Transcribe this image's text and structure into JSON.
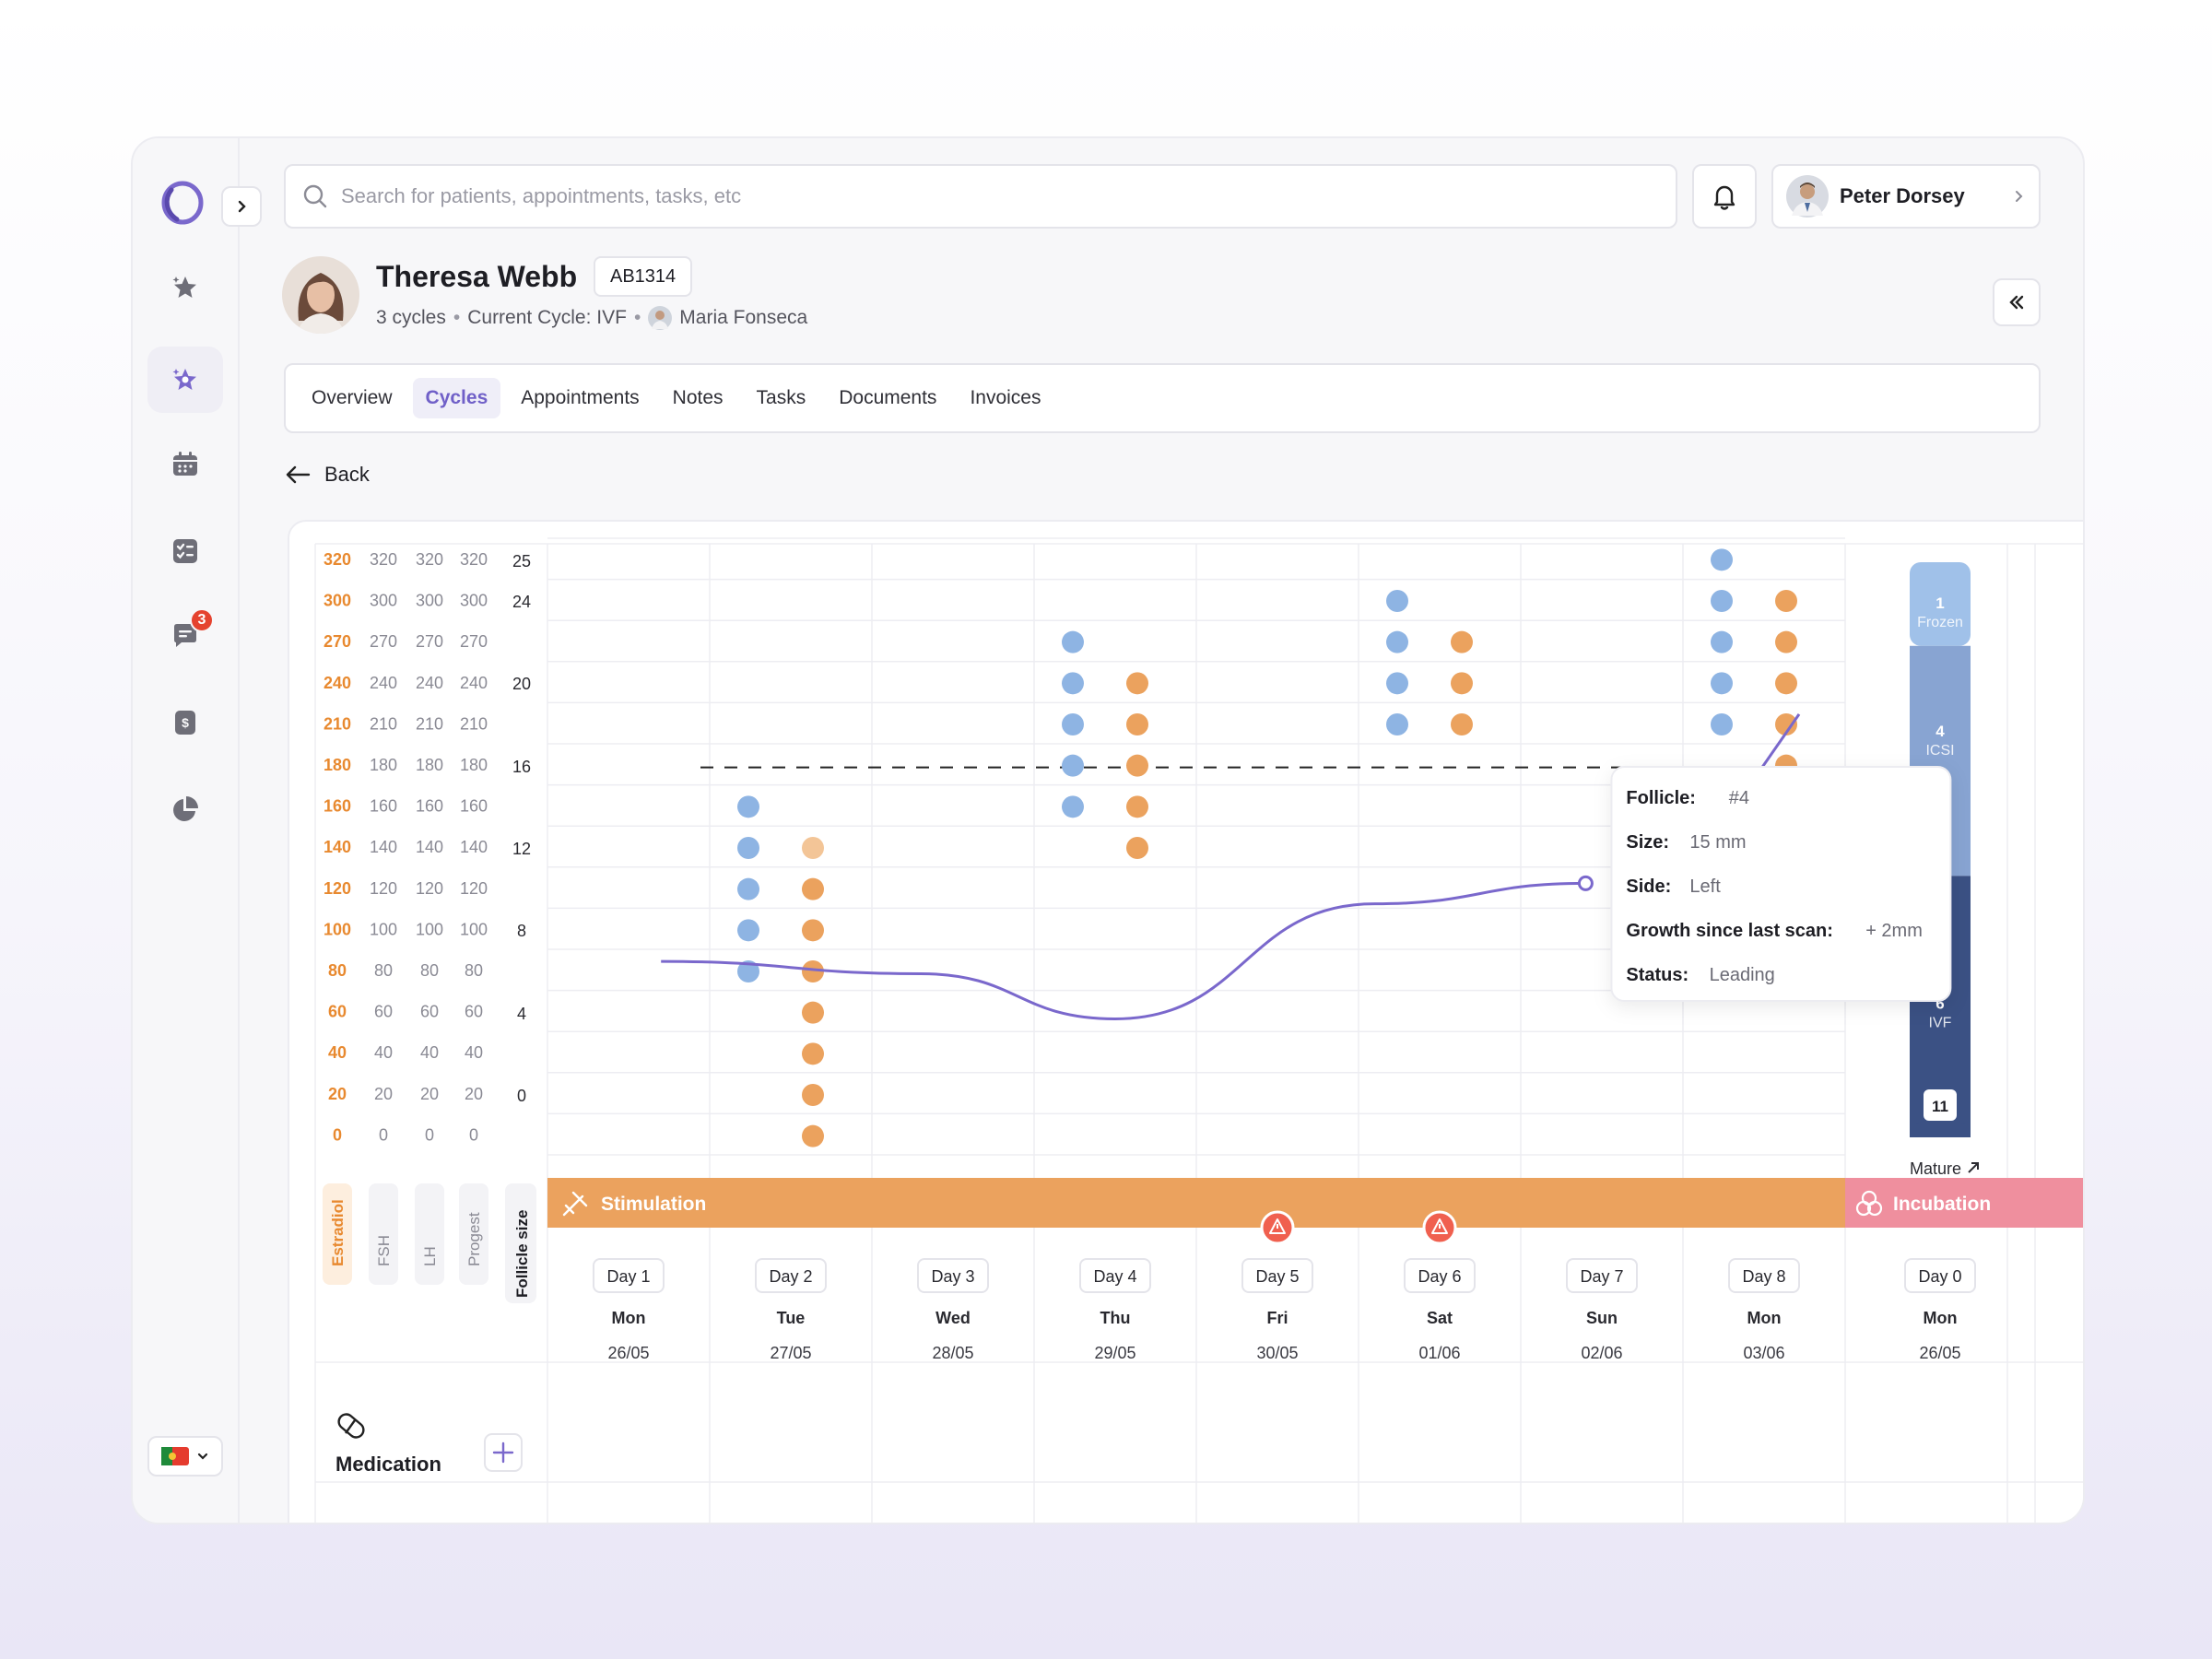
{
  "search": {
    "placeholder": "Search for patients, appointments, tasks, etc"
  },
  "user": {
    "name": "Peter Dorsey"
  },
  "sidebar": {
    "messages_badge": "3"
  },
  "patient": {
    "name": "Theresa Webb",
    "id": "AB1314",
    "cycles": "3 cycles",
    "current_cycle": "Current Cycle: IVF",
    "doctor": "Maria Fonseca"
  },
  "tabs": [
    "Overview",
    "Cycles",
    "Appointments",
    "Notes",
    "Tasks",
    "Documents",
    "Invoices"
  ],
  "active_tab": "Cycles",
  "back_label": "Back",
  "phases": {
    "stimulation": "Stimulation",
    "incubation": "Incubation"
  },
  "medication_label": "Medication",
  "colors": {
    "accent": "#7a68cc",
    "estradiol": "#e8892f",
    "blue_follicle": "#8eb4e3",
    "orange_follicle": "#eba25e",
    "stimulation": "#eba25e",
    "incubation": "#ef8f9e",
    "frozen": "#a0c1e9",
    "icsi": "#88a4d2",
    "ivf": "#3b5184",
    "alert": "#f0604f"
  },
  "chart_data": {
    "type": "scatter",
    "y_axes": [
      {
        "label": "Estradiol",
        "ticks": [
          320,
          300,
          270,
          240,
          210,
          180,
          160,
          140,
          120,
          100,
          80,
          60,
          40,
          20,
          0
        ]
      },
      {
        "label": "FSH",
        "ticks": [
          320,
          300,
          270,
          240,
          210,
          180,
          160,
          140,
          120,
          100,
          80,
          60,
          40,
          20,
          0
        ]
      },
      {
        "label": "LH",
        "ticks": [
          320,
          300,
          270,
          240,
          210,
          180,
          160,
          140,
          120,
          100,
          80,
          60,
          40,
          20,
          0
        ]
      },
      {
        "label": "Progest",
        "ticks": [
          320,
          300,
          270,
          240,
          210,
          180,
          160,
          140,
          120,
          100,
          80,
          60,
          40,
          20,
          0
        ]
      },
      {
        "label": "Follicle size",
        "ticks": [
          25,
          24,
          20,
          16,
          12,
          8,
          4,
          0
        ]
      }
    ],
    "days": [
      {
        "day": "Day 1",
        "weekday": "Mon",
        "date": "26/05"
      },
      {
        "day": "Day 2",
        "weekday": "Tue",
        "date": "27/05"
      },
      {
        "day": "Day 3",
        "weekday": "Wed",
        "date": "28/05"
      },
      {
        "day": "Day 4",
        "weekday": "Thu",
        "date": "29/05"
      },
      {
        "day": "Day 5",
        "weekday": "Fri",
        "date": "30/05",
        "alert": true
      },
      {
        "day": "Day 6",
        "weekday": "Sat",
        "date": "01/06",
        "alert": true
      },
      {
        "day": "Day 7",
        "weekday": "Sun",
        "date": "02/06"
      },
      {
        "day": "Day 8",
        "weekday": "Mon",
        "date": "03/06"
      },
      {
        "day": "Day 0",
        "weekday": "Mon",
        "date": "26/05"
      }
    ],
    "threshold_mm": 16,
    "follicles": [
      {
        "day": "Day 2",
        "side": "blue",
        "sizes": [
          14,
          12,
          10,
          8,
          6
        ]
      },
      {
        "day": "Day 2",
        "side": "orange",
        "sizes": [
          12,
          10,
          8,
          6,
          4,
          2,
          0,
          -2
        ]
      },
      {
        "day": "Day 4",
        "side": "blue",
        "sizes": [
          22,
          20,
          18,
          16,
          14
        ]
      },
      {
        "day": "Day 4",
        "side": "orange",
        "sizes": [
          20,
          18,
          16,
          14,
          12
        ]
      },
      {
        "day": "Day 6",
        "side": "blue",
        "sizes": [
          24,
          22,
          20,
          18
        ]
      },
      {
        "day": "Day 6",
        "side": "orange",
        "sizes": [
          22,
          20,
          18
        ]
      },
      {
        "day": "Day 8",
        "side": "blue",
        "sizes": [
          26,
          24,
          22,
          20,
          18
        ]
      },
      {
        "day": "Day 8",
        "side": "orange",
        "sizes": [
          24,
          22,
          20,
          18,
          16
        ]
      }
    ],
    "estradiol_line": [
      {
        "day": 1.2,
        "value": 84
      },
      {
        "day": 2.8,
        "value": 78
      },
      {
        "day": 4.0,
        "value": 56
      },
      {
        "day": 5.6,
        "value": 112
      },
      {
        "day": 6.9,
        "value": 122
      }
    ],
    "tooltip": {
      "rows": [
        {
          "label": "Follicle:",
          "value": "#4"
        },
        {
          "label": "Size:",
          "value": "15 mm"
        },
        {
          "label": "Side:",
          "value": "Left"
        },
        {
          "label": "Growth since last scan:",
          "value": "+ 2mm"
        },
        {
          "label": "Status:",
          "value": "Leading"
        }
      ]
    },
    "embryo_bar": {
      "segments": [
        {
          "count": "1",
          "label": "Frozen"
        },
        {
          "count": "4",
          "label": "ICSI"
        },
        {
          "count": "6",
          "label": "IVF"
        }
      ],
      "total": "11",
      "footer": "Mature"
    }
  }
}
